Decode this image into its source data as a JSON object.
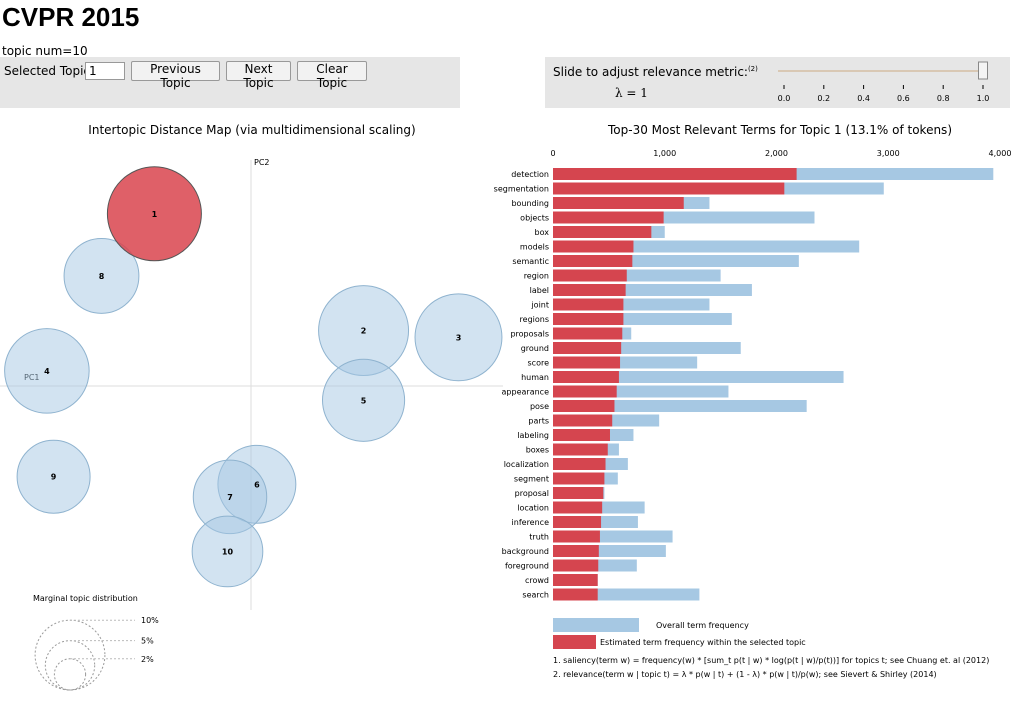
{
  "page": {
    "title": "CVPR 2015",
    "topic_num": "topic num=10"
  },
  "controls": {
    "selected_label": "Selected Topic:",
    "selected_value": "1",
    "prev_label": "Previous Topic",
    "next_label": "Next Topic",
    "clear_label": "Clear Topic",
    "slider_label": "Slide to adjust relevance metric:",
    "slider_footnote": "(2)",
    "lambda_text": "λ = 1",
    "lambda_value": 1,
    "slider_ticks": [
      "0.0",
      "0.2",
      "0.4",
      "0.6",
      "0.8",
      "1.0"
    ]
  },
  "colors": {
    "bubble_fill": "#a6c8e3",
    "bubble_selected": "#d9444e",
    "bar_overall": "#a6c8e3",
    "bar_topic": "#d5454f",
    "panel_bg": "#e6e6e6"
  },
  "chart_data": [
    {
      "type": "scatter",
      "title": "Intertopic Distance Map (via multidimensional scaling)",
      "xlabel": "PC1",
      "ylabel": "PC2",
      "xlim": [
        -0.3,
        0.3
      ],
      "ylim": [
        -0.3,
        0.3
      ],
      "selected_topic": 1,
      "topics": [
        {
          "id": "1",
          "pc1": -0.115,
          "pc2": 0.205,
          "marginal": 13.1
        },
        {
          "id": "2",
          "pc1": 0.134,
          "pc2": 0.066,
          "marginal": 12.0
        },
        {
          "id": "3",
          "pc1": 0.247,
          "pc2": 0.058,
          "marginal": 11.2
        },
        {
          "id": "4",
          "pc1": -0.243,
          "pc2": 0.018,
          "marginal": 10.6
        },
        {
          "id": "5",
          "pc1": 0.134,
          "pc2": -0.017,
          "marginal": 10.0
        },
        {
          "id": "6",
          "pc1": 0.007,
          "pc2": -0.117,
          "marginal": 9.0
        },
        {
          "id": "7",
          "pc1": -0.025,
          "pc2": -0.132,
          "marginal": 8.0
        },
        {
          "id": "8",
          "pc1": -0.178,
          "pc2": 0.131,
          "marginal": 8.3
        },
        {
          "id": "9",
          "pc1": -0.235,
          "pc2": -0.108,
          "marginal": 7.9
        },
        {
          "id": "10",
          "pc1": -0.028,
          "pc2": -0.197,
          "marginal": 7.4
        }
      ],
      "size_legend": {
        "title": "Marginal topic distribution",
        "levels": [
          {
            "label": "2%",
            "value": 2
          },
          {
            "label": "5%",
            "value": 5
          },
          {
            "label": "10%",
            "value": 10
          }
        ]
      }
    },
    {
      "type": "bar",
      "orientation": "horizontal",
      "title": "Top-30 Most Relevant Terms for Topic 1 (13.1% of tokens)",
      "xlim": [
        0,
        4000
      ],
      "xticks": [
        {
          "label": "0",
          "value": 0
        },
        {
          "label": "1,000",
          "value": 1000
        },
        {
          "label": "2,000",
          "value": 2000
        },
        {
          "label": "3,000",
          "value": 3000
        },
        {
          "label": "4,000",
          "value": 4000
        }
      ],
      "categories": [
        "detection",
        "segmentation",
        "bounding",
        "objects",
        "box",
        "models",
        "semantic",
        "region",
        "label",
        "joint",
        "regions",
        "proposals",
        "ground",
        "score",
        "human",
        "appearance",
        "pose",
        "parts",
        "labeling",
        "boxes",
        "localization",
        "segment",
        "proposal",
        "location",
        "inference",
        "truth",
        "background",
        "foreground",
        "crowd",
        "search"
      ],
      "series": [
        {
          "name": "Overall term frequency",
          "values": [
            3940,
            2960,
            1400,
            2340,
            1000,
            2740,
            2200,
            1500,
            1780,
            1400,
            1600,
            700,
            1680,
            1290,
            2600,
            1570,
            2270,
            950,
            720,
            590,
            670,
            580,
            460,
            820,
            760,
            1070,
            1010,
            750,
            400,
            1310
          ]
        },
        {
          "name": "Estimated term frequency within the selected topic",
          "values": [
            2180,
            2070,
            1170,
            990,
            880,
            720,
            710,
            660,
            650,
            630,
            630,
            620,
            610,
            600,
            590,
            570,
            550,
            530,
            510,
            490,
            470,
            460,
            450,
            440,
            430,
            420,
            410,
            405,
            400,
            400
          ]
        }
      ],
      "footnotes": [
        "1. saliency(term w) = frequency(w) * [sum_t p(t | w) * log(p(t | w)/p(t))] for topics t; see Chuang et. al (2012)",
        "2. relevance(term w | topic t) = λ * p(w | t) + (1 - λ) * p(w | t)/p(w); see Sievert & Shirley (2014)"
      ]
    }
  ]
}
